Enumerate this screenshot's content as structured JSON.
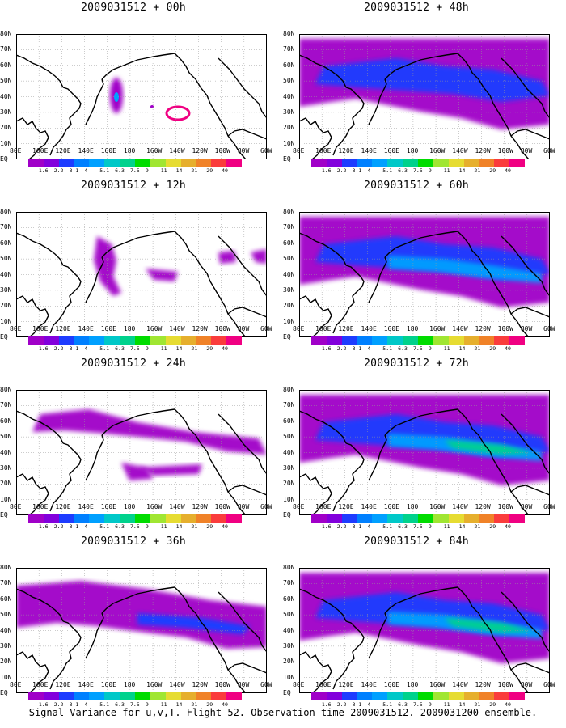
{
  "figure": {
    "caption": "Signal Variance for u,v,T. Flight 52. Observation time 2009031512. 2009031200 ensemble.",
    "lat_labels": [
      "80N",
      "70N",
      "60N",
      "50N",
      "40N",
      "30N",
      "20N",
      "10N",
      "EQ"
    ],
    "lon_labels": [
      "80E",
      "100E",
      "120E",
      "140E",
      "160E",
      "180",
      "160W",
      "140W",
      "120W",
      "100W",
      "80W",
      "60W"
    ],
    "colorbar": {
      "levels": [
        "1.6",
        "2.2",
        "3.1",
        "4",
        "5.1",
        "6.3",
        "7.5",
        "9",
        "11",
        "14",
        "21",
        "29",
        "40"
      ],
      "colors": [
        "#a000c8",
        "#8200dc",
        "#1e3cff",
        "#0080ff",
        "#00a0ff",
        "#00c8c8",
        "#00d28c",
        "#00dc00",
        "#a0e632",
        "#e6dc32",
        "#e6af2d",
        "#f08228",
        "#fa3c3c",
        "#f00082"
      ]
    },
    "panels": [
      {
        "title": "2009031512 + 00h"
      },
      {
        "title": "2009031512 + 48h"
      },
      {
        "title": "2009031512 + 12h"
      },
      {
        "title": "2009031512 + 60h"
      },
      {
        "title": "2009031512 + 24h"
      },
      {
        "title": "2009031512 + 72h"
      },
      {
        "title": "2009031512 + 36h"
      },
      {
        "title": "2009031512 + 84h"
      }
    ]
  }
}
